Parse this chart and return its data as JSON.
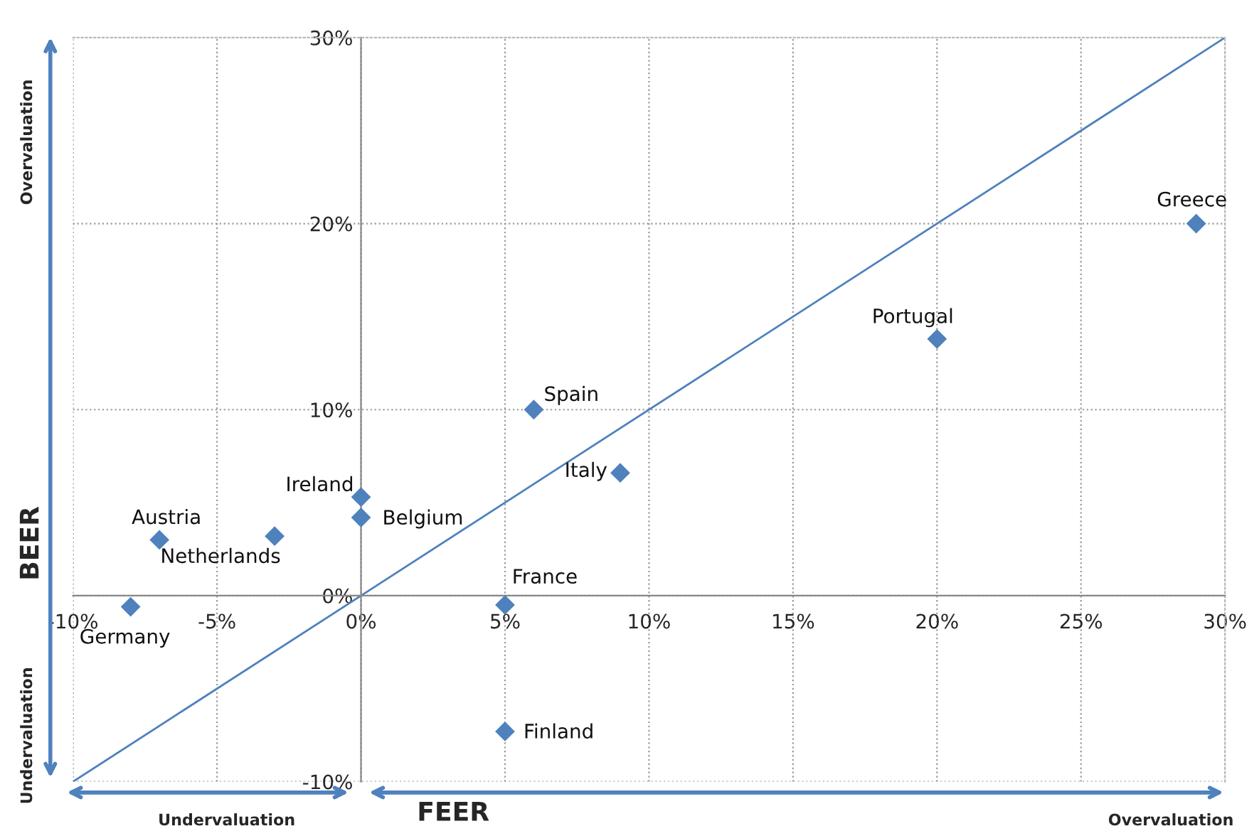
{
  "chart_data": {
    "type": "scatter",
    "xlabel": "FEER",
    "ylabel": "BEER",
    "marker": "diamond",
    "legend": false,
    "grid": true,
    "xlim": [
      -10,
      30
    ],
    "ylim": [
      -10,
      30
    ],
    "xticks": [
      {
        "value": -10,
        "label": "-10%"
      },
      {
        "value": -5,
        "label": "-5%"
      },
      {
        "value": 0,
        "label": "0%"
      },
      {
        "value": 5,
        "label": "5%"
      },
      {
        "value": 10,
        "label": "10%"
      },
      {
        "value": 15,
        "label": "15%"
      },
      {
        "value": 20,
        "label": "20%"
      },
      {
        "value": 25,
        "label": "25%"
      },
      {
        "value": 30,
        "label": "30%"
      }
    ],
    "yticks": [
      {
        "value": -10,
        "label": "-10%"
      },
      {
        "value": 0,
        "label": "0%"
      },
      {
        "value": 10,
        "label": "10%"
      },
      {
        "value": 20,
        "label": "20%"
      },
      {
        "value": 30,
        "label": "30%"
      }
    ],
    "series": [
      {
        "name": "Greece",
        "color": "#4f81bd",
        "x": [
          29
        ],
        "values": [
          20
        ]
      },
      {
        "name": "Portugal",
        "color": "#4f81bd",
        "x": [
          20
        ],
        "values": [
          13.8
        ]
      },
      {
        "name": "Spain",
        "color": "#4f81bd",
        "x": [
          6
        ],
        "values": [
          10
        ]
      },
      {
        "name": "Italy",
        "color": "#4f81bd",
        "x": [
          9
        ],
        "values": [
          6.6
        ]
      },
      {
        "name": "Ireland",
        "color": "#4f81bd",
        "x": [
          0
        ],
        "values": [
          5.3
        ]
      },
      {
        "name": "Belgium",
        "color": "#4f81bd",
        "x": [
          0
        ],
        "values": [
          4.2
        ]
      },
      {
        "name": "Austria",
        "color": "#4f81bd",
        "x": [
          -7
        ],
        "values": [
          3
        ]
      },
      {
        "name": "Netherlands",
        "color": "#4f81bd",
        "x": [
          -3
        ],
        "values": [
          3.2
        ]
      },
      {
        "name": "Germany",
        "color": "#4f81bd",
        "x": [
          -8
        ],
        "values": [
          -0.6
        ]
      },
      {
        "name": "France",
        "color": "#4f81bd",
        "x": [
          5
        ],
        "values": [
          -0.5
        ]
      },
      {
        "name": "Finland",
        "color": "#4f81bd",
        "x": [
          5
        ],
        "values": [
          -7.3
        ]
      },
      {
        "type": "line",
        "marker": "none",
        "color": "#4f81bd",
        "x": [
          -10,
          30
        ],
        "values": [
          -10,
          30
        ]
      }
    ],
    "annotations": [
      "Overvaluation",
      "Undervaluation",
      "Undervaluation",
      "Overvaluation"
    ]
  }
}
